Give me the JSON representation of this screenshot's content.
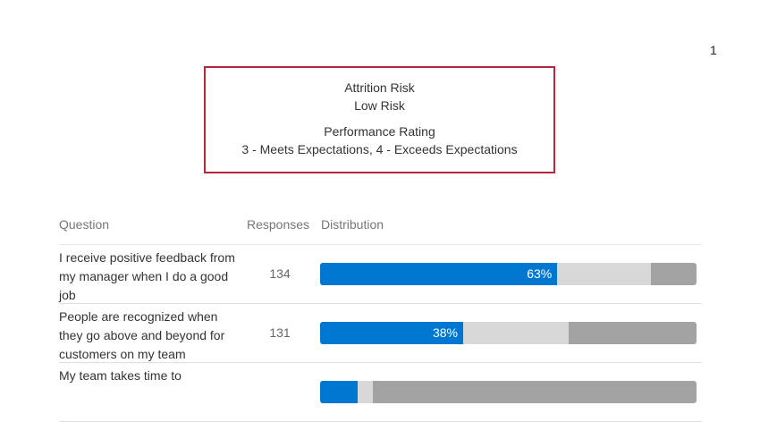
{
  "page_number": "1",
  "filters": {
    "attrition_label": "Attrition Risk",
    "attrition_value": "Low Risk",
    "performance_label": "Performance Rating",
    "performance_value": "3 - Meets Expectations, 4 - Exceeds Expectations"
  },
  "table": {
    "headers": {
      "question": "Question",
      "responses": "Responses",
      "distribution": "Distribution"
    },
    "colors": {
      "favorable": "#0078d2",
      "neutral": "#d8d8d8",
      "unfavorable": "#a3a3a3",
      "border": "#b5283a"
    },
    "rows": [
      {
        "question": "I receive positive feedback from my manager when I do a good job",
        "responses": "134",
        "favorable_label": "63%",
        "distribution_percent": [
          63,
          25,
          12
        ]
      },
      {
        "question": "People are recognized when they go above and beyond for customers on my team",
        "responses": "131",
        "favorable_label": "38%",
        "distribution_percent": [
          38,
          28,
          34
        ]
      },
      {
        "question": "My team takes time to",
        "responses": "",
        "favorable_label": "",
        "distribution_percent": [
          10,
          4,
          86
        ]
      }
    ]
  }
}
